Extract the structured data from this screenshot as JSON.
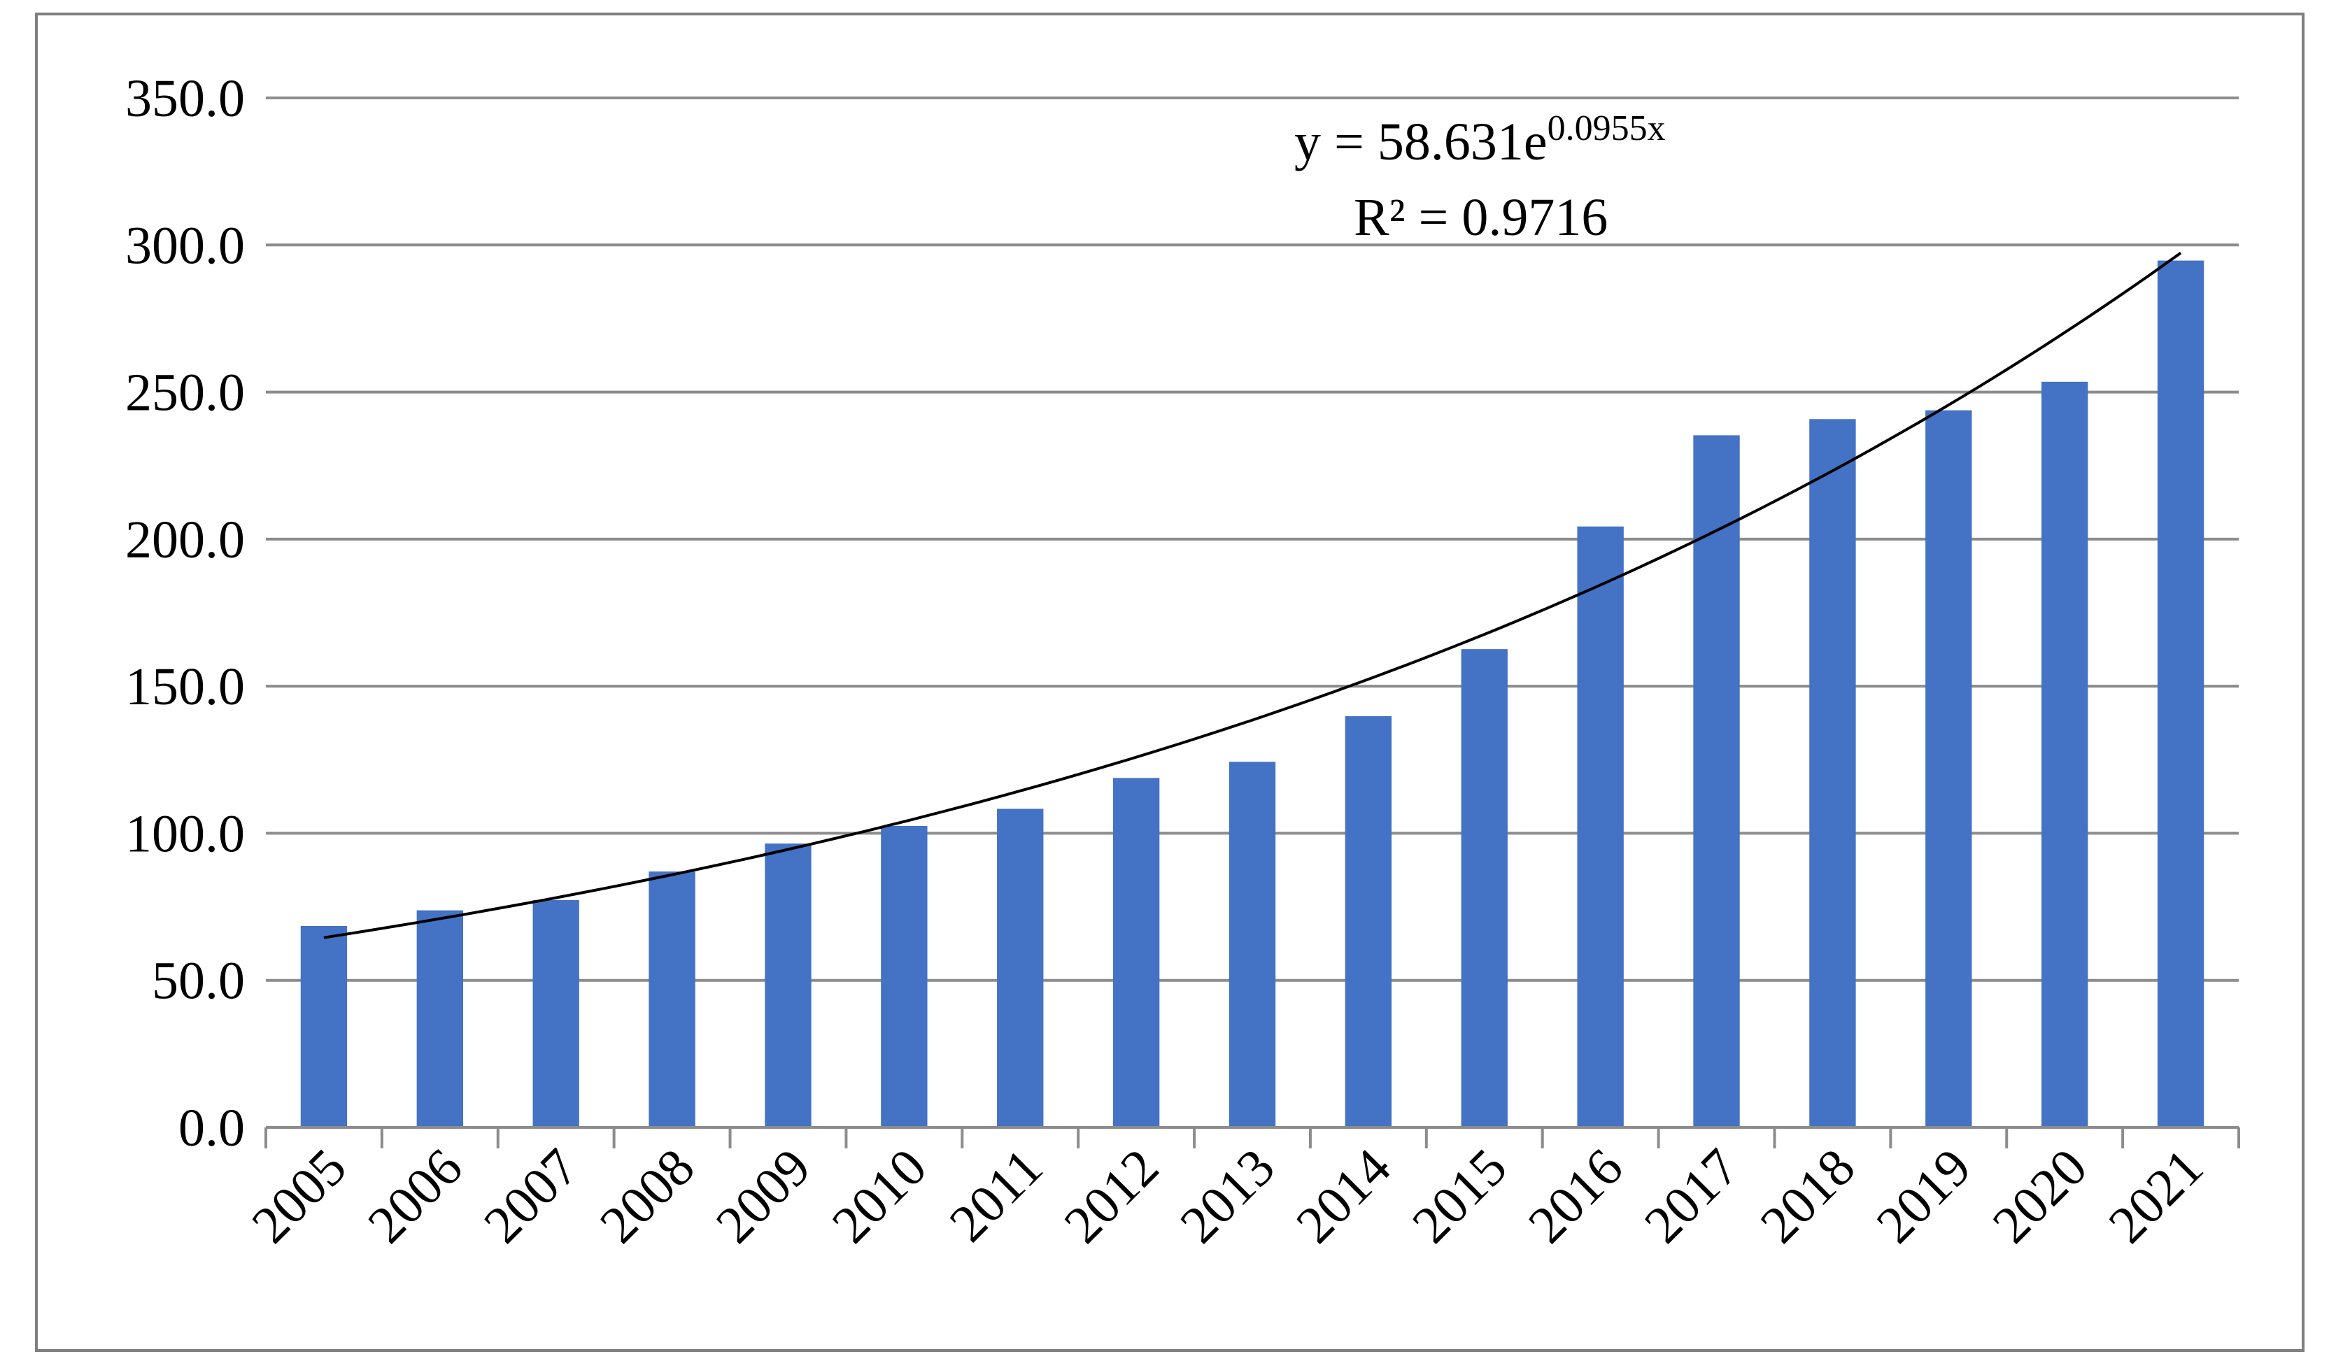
{
  "chart_data": {
    "type": "bar",
    "title": "",
    "xlabel": "",
    "ylabel": "",
    "categories": [
      "2005",
      "2006",
      "2007",
      "2008",
      "2009",
      "2010",
      "2011",
      "2012",
      "2013",
      "2014",
      "2015",
      "2016",
      "2017",
      "2018",
      "2019",
      "2020",
      "2021"
    ],
    "values": [
      68.5,
      73.8,
      77.3,
      87.0,
      96.5,
      102.5,
      108.3,
      118.8,
      124.3,
      139.8,
      162.6,
      204.3,
      235.3,
      240.8,
      243.8,
      253.5,
      294.7
    ],
    "ylim": [
      0,
      350
    ],
    "yticks": [
      "0.0",
      "50.0",
      "100.0",
      "150.0",
      "200.0",
      "250.0",
      "300.0",
      "350.0"
    ],
    "grid": true,
    "trendline": {
      "type": "exponential",
      "a": 58.631,
      "b": 0.0955,
      "equation_prefix": "y = 58.631e",
      "equation_exponent": "0.0955x",
      "r_squared_label": "R² = 0.9716"
    },
    "colors": {
      "bar": "#4472C4",
      "grid": "#8C8C8C",
      "axis": "#8C8C8C",
      "trend": "#000000",
      "frame": "#7F7F7F"
    }
  }
}
